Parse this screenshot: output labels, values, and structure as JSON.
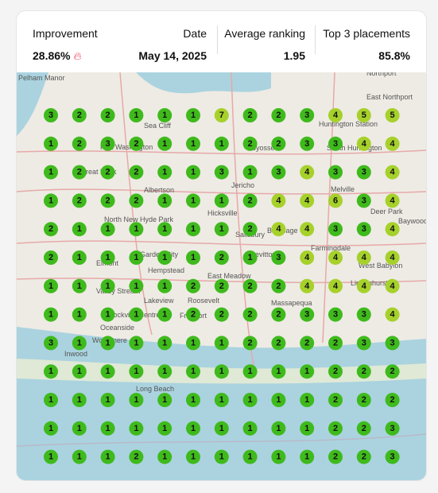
{
  "header": {
    "improvement": {
      "label": "Improvement",
      "value": "28.86%"
    },
    "date": {
      "label": "Date",
      "value": "May 14, 2025"
    },
    "average_ranking": {
      "label": "Average ranking",
      "value": "1.95"
    },
    "top3": {
      "label": "Top 3 placements",
      "value": "85.8%"
    }
  },
  "map": {
    "labels": [
      "Pelham Manor",
      "Northport",
      "East Northport",
      "Sea Cliff",
      "Huntington Station",
      "Port Washington",
      "Syosset",
      "South Huntington",
      "Great Neck",
      "Albertson",
      "Jericho",
      "Melville",
      "Hicksville",
      "Deer Park",
      "Baywood",
      "North New Hyde Park",
      "Salisbury",
      "Bethpage",
      "Farmingdale",
      "Elmont",
      "Garden City",
      "Levittown",
      "West Babylon",
      "Hempstead",
      "East Meadow",
      "Lindenhurst",
      "Valley Stream",
      "Lakeview",
      "Roosevelt",
      "Massapequa",
      "Rockville Centre",
      "Freeport",
      "Oceanside",
      "Woodmere",
      "Inwood",
      "Long Beach"
    ],
    "colors": [
      "#3fba1c",
      "#a6d12b"
    ]
  },
  "grid": {
    "rows": [
      [
        3,
        2,
        2,
        1,
        1,
        1,
        7,
        2,
        2,
        3,
        4,
        5,
        5
      ],
      [
        1,
        2,
        3,
        2,
        1,
        1,
        1,
        2,
        2,
        3,
        3,
        4,
        4
      ],
      [
        1,
        2,
        2,
        2,
        1,
        1,
        3,
        1,
        3,
        4,
        3,
        3,
        4
      ],
      [
        1,
        2,
        2,
        2,
        1,
        1,
        1,
        2,
        4,
        4,
        6,
        3,
        4
      ],
      [
        2,
        1,
        1,
        1,
        1,
        1,
        1,
        2,
        4,
        4,
        3,
        3,
        4
      ],
      [
        2,
        1,
        1,
        1,
        1,
        1,
        2,
        1,
        3,
        4,
        4,
        4,
        4
      ],
      [
        1,
        1,
        1,
        1,
        1,
        2,
        2,
        2,
        2,
        4,
        4,
        4,
        4
      ],
      [
        1,
        1,
        1,
        1,
        1,
        2,
        2,
        2,
        2,
        3,
        3,
        3,
        4
      ],
      [
        3,
        1,
        1,
        1,
        1,
        1,
        1,
        2,
        2,
        2,
        2,
        3,
        3
      ],
      [
        1,
        1,
        1,
        1,
        1,
        1,
        1,
        1,
        1,
        1,
        2,
        2,
        2
      ],
      [
        1,
        1,
        1,
        1,
        1,
        1,
        1,
        1,
        1,
        1,
        2,
        2,
        2
      ],
      [
        1,
        1,
        1,
        1,
        1,
        1,
        1,
        1,
        1,
        1,
        2,
        2,
        3
      ],
      [
        1,
        1,
        1,
        2,
        1,
        1,
        1,
        1,
        1,
        1,
        2,
        2,
        3
      ]
    ]
  }
}
